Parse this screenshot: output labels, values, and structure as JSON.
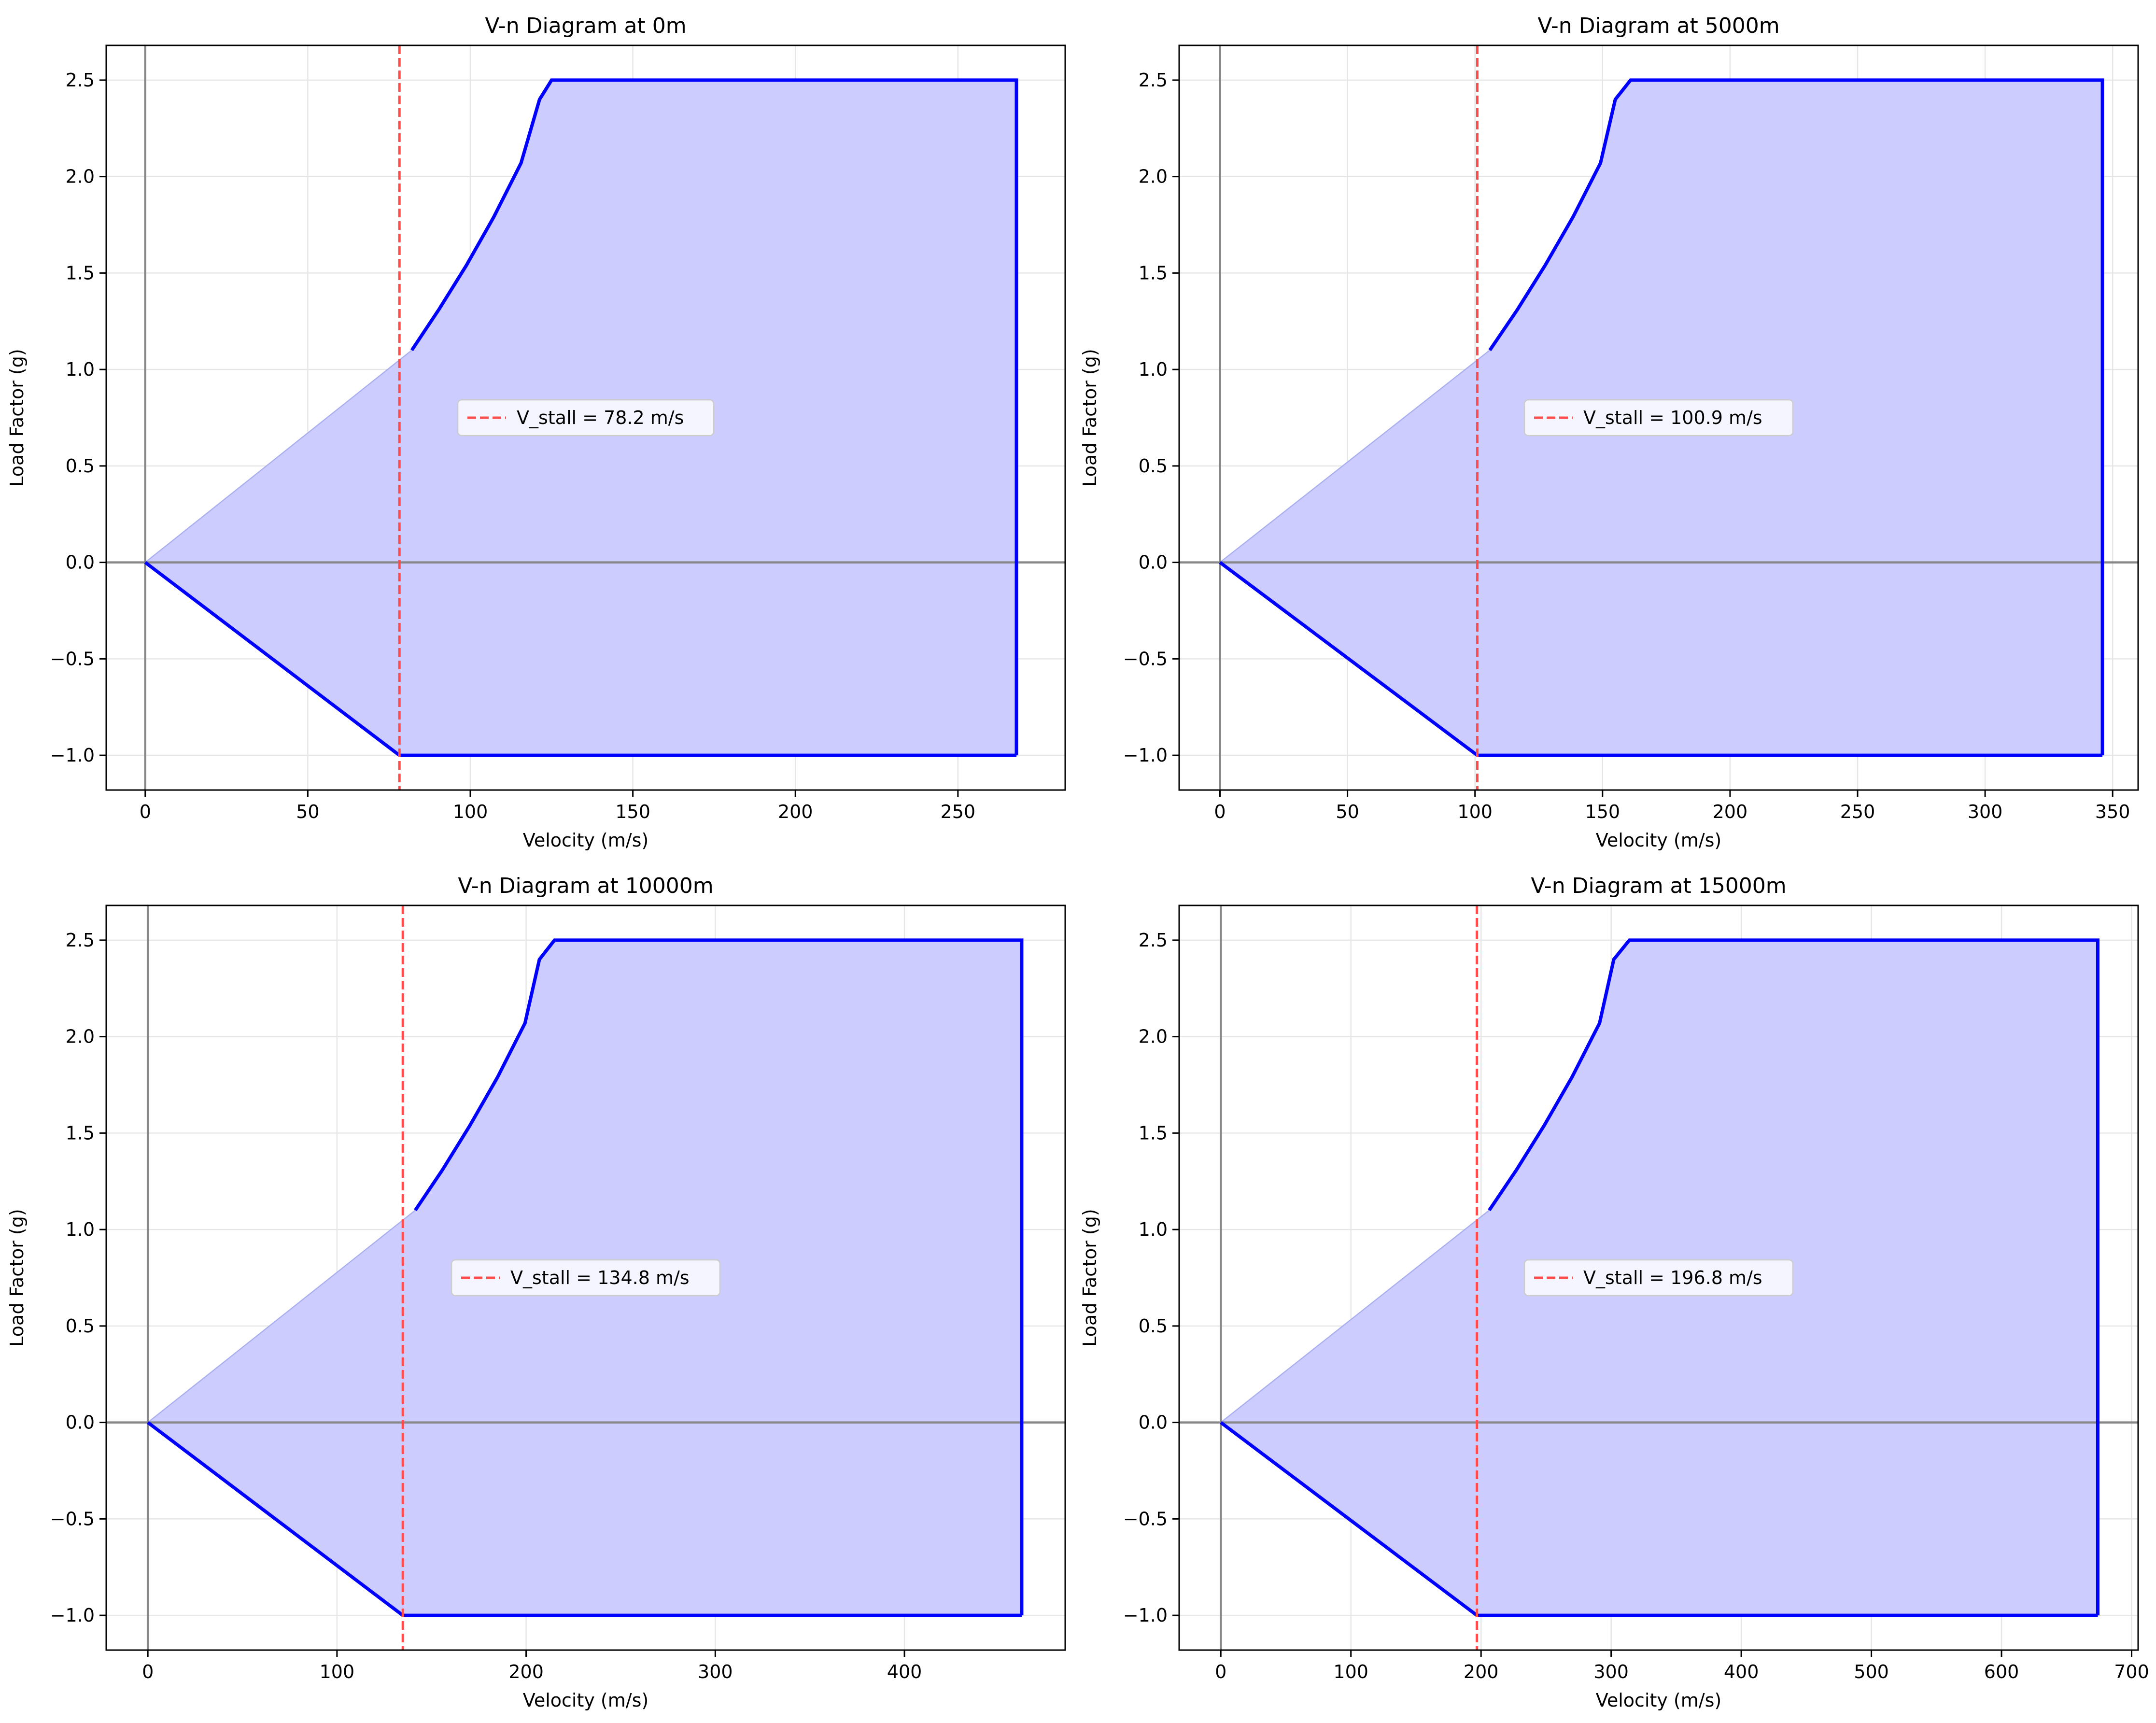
{
  "chart_data": [
    {
      "type": "area",
      "title": "V-n Diagram at 0m",
      "xlabel": "Velocity (m/s)",
      "ylabel": "Load Factor (g)",
      "xlim": [
        -12,
        283
      ],
      "ylim": [
        -1.18,
        2.68
      ],
      "xticks": [
        0,
        50,
        100,
        150,
        200,
        250
      ],
      "xtick_labels": [
        "0",
        "50",
        "100",
        "150",
        "200",
        "250"
      ],
      "yticks": [
        -1.0,
        -0.5,
        0.0,
        0.5,
        1.0,
        1.5,
        2.0,
        2.5
      ],
      "ytick_labels": [
        "−1.0",
        "−0.5",
        "0.0",
        "0.5",
        "1.0",
        "1.5",
        "2.0",
        "2.5"
      ],
      "grid": true,
      "v_stall": 78.2,
      "v_max": 268.0,
      "envelope_upper": [
        [
          82.0,
          1.1
        ],
        [
          90.3,
          1.31
        ],
        [
          98.8,
          1.54
        ],
        [
          107.2,
          1.79
        ],
        [
          115.6,
          2.07
        ],
        [
          121.3,
          2.4
        ],
        [
          125.0,
          2.5
        ],
        [
          268.0,
          2.5
        ]
      ],
      "envelope_lower": [
        [
          0,
          0
        ],
        [
          78.2,
          -1.0
        ],
        [
          268.0,
          -1.0
        ]
      ],
      "legend": {
        "label": "V_stall = 78.2 m/s",
        "position": "center"
      }
    },
    {
      "type": "area",
      "title": "V-n Diagram at 5000m",
      "xlabel": "Velocity (m/s)",
      "ylabel": "Load Factor (g)",
      "xlim": [
        -16,
        360
      ],
      "ylim": [
        -1.18,
        2.68
      ],
      "xticks": [
        0,
        50,
        100,
        150,
        200,
        250,
        300,
        350
      ],
      "xtick_labels": [
        "0",
        "50",
        "100",
        "150",
        "200",
        "250",
        "300",
        "350"
      ],
      "yticks": [
        -1.0,
        -0.5,
        0.0,
        0.5,
        1.0,
        1.5,
        2.0,
        2.5
      ],
      "ytick_labels": [
        "−1.0",
        "−0.5",
        "0.0",
        "0.5",
        "1.0",
        "1.5",
        "2.0",
        "2.5"
      ],
      "grid": true,
      "v_stall": 100.9,
      "v_max": 346.0,
      "envelope_upper": [
        [
          105.8,
          1.1
        ],
        [
          116.6,
          1.31
        ],
        [
          127.5,
          1.54
        ],
        [
          138.4,
          1.79
        ],
        [
          149.2,
          2.07
        ],
        [
          155.0,
          2.4
        ],
        [
          161.0,
          2.5
        ],
        [
          346.0,
          2.5
        ]
      ],
      "envelope_lower": [
        [
          0,
          0
        ],
        [
          100.9,
          -1.0
        ],
        [
          346.0,
          -1.0
        ]
      ],
      "legend": {
        "label": "V_stall = 100.9 m/s",
        "position": "center"
      }
    },
    {
      "type": "area",
      "title": "V-n Diagram at 10000m",
      "xlabel": "Velocity (m/s)",
      "ylabel": "Load Factor (g)",
      "xlim": [
        -22,
        485
      ],
      "ylim": [
        -1.18,
        2.68
      ],
      "xticks": [
        0,
        100,
        200,
        300,
        400
      ],
      "xtick_labels": [
        "0",
        "100",
        "200",
        "300",
        "400"
      ],
      "yticks": [
        -1.0,
        -0.5,
        0.0,
        0.5,
        1.0,
        1.5,
        2.0,
        2.5
      ],
      "ytick_labels": [
        "−1.0",
        "−0.5",
        "0.0",
        "0.5",
        "1.0",
        "1.5",
        "2.0",
        "2.5"
      ],
      "grid": true,
      "v_stall": 134.8,
      "v_max": 462.0,
      "envelope_upper": [
        [
          141.4,
          1.1
        ],
        [
          155.8,
          1.31
        ],
        [
          170.3,
          1.54
        ],
        [
          184.9,
          1.79
        ],
        [
          199.4,
          2.07
        ],
        [
          207.0,
          2.4
        ],
        [
          215.0,
          2.5
        ],
        [
          462.0,
          2.5
        ]
      ],
      "envelope_lower": [
        [
          0,
          0
        ],
        [
          134.8,
          -1.0
        ],
        [
          462.0,
          -1.0
        ]
      ],
      "legend": {
        "label": "V_stall = 134.8 m/s",
        "position": "center"
      }
    },
    {
      "type": "area",
      "title": "V-n Diagram at 15000m",
      "xlabel": "Velocity (m/s)",
      "ylabel": "Load Factor (g)",
      "xlim": [
        -32,
        705
      ],
      "ylim": [
        -1.18,
        2.68
      ],
      "xticks": [
        0,
        100,
        200,
        300,
        400,
        500,
        600,
        700
      ],
      "xtick_labels": [
        "0",
        "100",
        "200",
        "300",
        "400",
        "500",
        "600",
        "700"
      ],
      "yticks": [
        -1.0,
        -0.5,
        0.0,
        0.5,
        1.0,
        1.5,
        2.0,
        2.5
      ],
      "ytick_labels": [
        "−1.0",
        "−0.5",
        "0.0",
        "0.5",
        "1.0",
        "1.5",
        "2.0",
        "2.5"
      ],
      "grid": true,
      "v_stall": 196.8,
      "v_max": 674.0,
      "envelope_upper": [
        [
          206.3,
          1.1
        ],
        [
          227.3,
          1.31
        ],
        [
          248.6,
          1.54
        ],
        [
          269.9,
          1.79
        ],
        [
          291.1,
          2.07
        ],
        [
          302.0,
          2.4
        ],
        [
          314.0,
          2.5
        ],
        [
          674.0,
          2.5
        ]
      ],
      "envelope_lower": [
        [
          0,
          0
        ],
        [
          196.8,
          -1.0
        ],
        [
          674.0,
          -1.0
        ]
      ],
      "legend": {
        "label": "V_stall = 196.8 m/s",
        "position": "center"
      }
    }
  ],
  "colors": {
    "envelope_line": "#0000ff",
    "envelope_fill": "#ccccff",
    "stall_line": "#ff4d4d",
    "reference_axes": "#888888",
    "grid": "#e6e6e6",
    "frame": "#000000"
  }
}
